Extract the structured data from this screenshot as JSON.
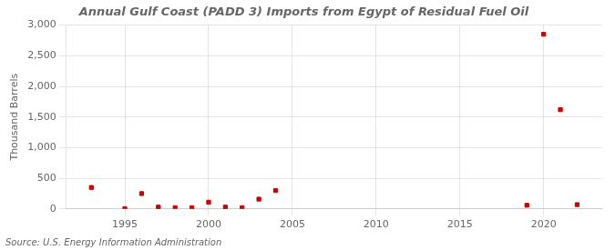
{
  "chart_data": {
    "type": "scatter",
    "title": "Annual Gulf Coast (PADD 3) Imports from Egypt of Residual Fuel Oil",
    "ylabel": "Thousand Barrels",
    "annotations": [
      "Source: U.S. Energy Information Administration"
    ],
    "x": [
      1993,
      1995,
      1996,
      1997,
      1998,
      1999,
      2000,
      2001,
      2002,
      2003,
      2004,
      2019,
      2020,
      2021,
      2022
    ],
    "values": [
      350,
      5,
      250,
      30,
      20,
      20,
      110,
      30,
      20,
      160,
      300,
      60,
      2850,
      1620,
      70
    ],
    "color": "#cc0000",
    "marker": "square",
    "xlim": [
      1991.5,
      2023.5
    ],
    "xticks": [
      1995,
      2000,
      2005,
      2010,
      2015,
      2020
    ],
    "ylim": [
      0,
      3000
    ],
    "yticks": [
      0,
      500,
      {
        "value": 1000,
        "label": "1,000"
      },
      {
        "value": 1500,
        "label": "1,500"
      },
      {
        "value": 2000,
        "label": "2,000"
      },
      {
        "value": 2500,
        "label": "2,500"
      },
      {
        "value": 3000,
        "label": "3,000"
      }
    ],
    "grid": true
  }
}
